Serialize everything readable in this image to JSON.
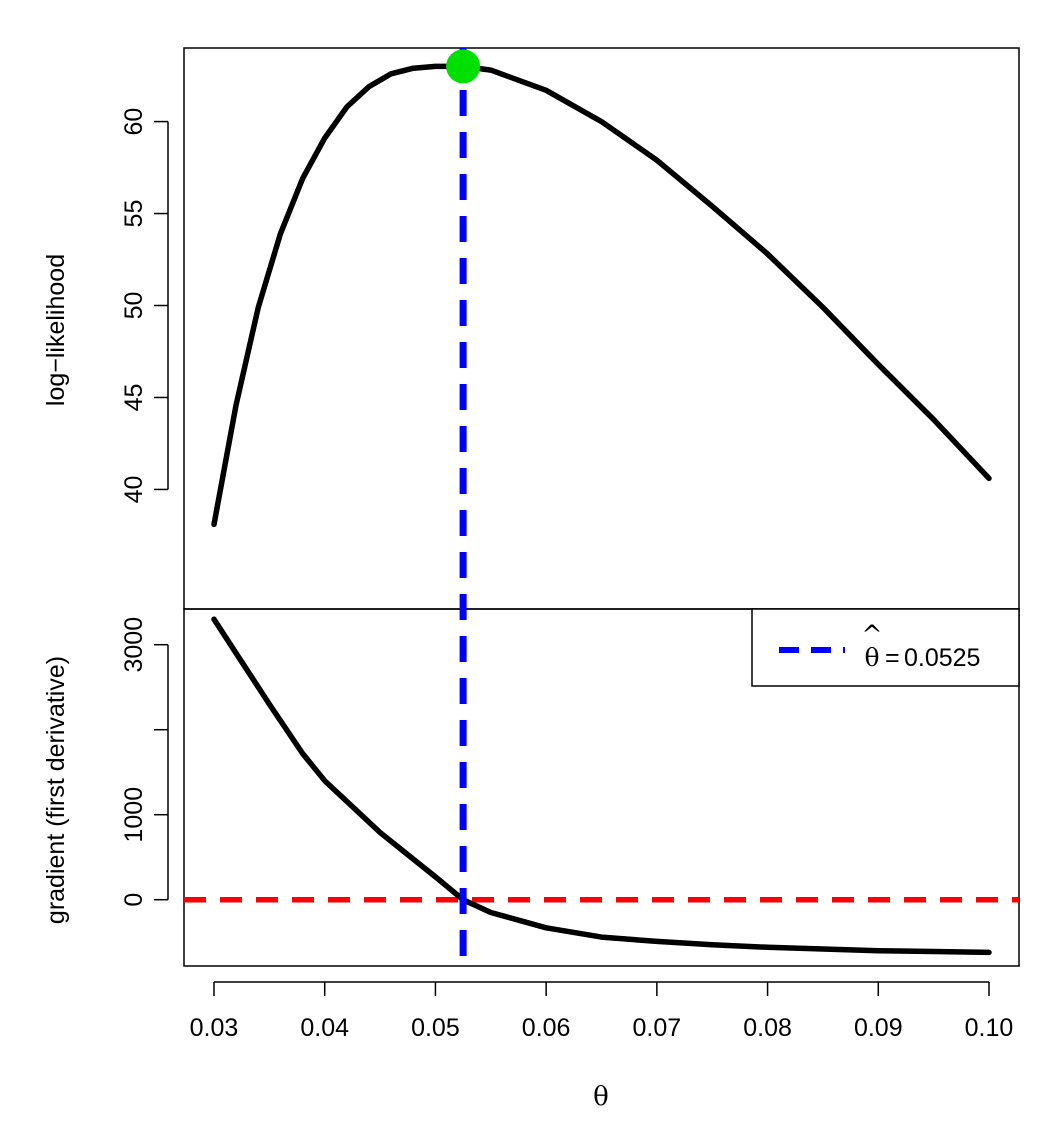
{
  "chart_data": [
    {
      "type": "line",
      "panel": "top",
      "ylabel": "log−likelihood",
      "xlim": [
        0.03,
        0.1
      ],
      "ylim": [
        33.5,
        64.0
      ],
      "yticks": [
        40,
        45,
        50,
        55,
        60
      ],
      "series": [
        {
          "name": "log-likelihood",
          "color": "#000000",
          "x": [
            0.03,
            0.032,
            0.034,
            0.036,
            0.038,
            0.04,
            0.042,
            0.044,
            0.046,
            0.048,
            0.05,
            0.0525,
            0.055,
            0.06,
            0.065,
            0.07,
            0.075,
            0.08,
            0.085,
            0.09,
            0.095,
            0.1
          ],
          "y": [
            38.1,
            44.6,
            49.9,
            53.9,
            56.9,
            59.1,
            60.8,
            61.9,
            62.6,
            62.9,
            63.0,
            63.0,
            62.8,
            61.7,
            60.0,
            57.9,
            55.4,
            52.8,
            49.9,
            46.8,
            43.8,
            40.6
          ]
        }
      ],
      "mle_point": {
        "x": 0.0525,
        "y": 63.0,
        "color": "#00e000"
      }
    },
    {
      "type": "line",
      "panel": "bottom",
      "ylabel": "gradient (first derivative)",
      "xlabel": "θ",
      "xlim": [
        0.03,
        0.1
      ],
      "ylim": [
        -780,
        3420
      ],
      "yticks": [
        0,
        1000,
        2000,
        3000
      ],
      "ytick_labels": [
        "0",
        "1000",
        "",
        "3000"
      ],
      "xticks": [
        0.03,
        0.04,
        0.05,
        0.06,
        0.07,
        0.08,
        0.09,
        0.1
      ],
      "xtick_labels": [
        "0.03",
        "0.04",
        "0.05",
        "0.06",
        "0.07",
        "0.08",
        "0.09",
        "0.10"
      ],
      "series": [
        {
          "name": "gradient",
          "color": "#000000",
          "x": [
            0.03,
            0.032,
            0.035,
            0.038,
            0.04,
            0.045,
            0.05,
            0.0525,
            0.055,
            0.06,
            0.065,
            0.07,
            0.075,
            0.08,
            0.085,
            0.09,
            0.095,
            0.1
          ],
          "y": [
            3300,
            2900,
            2300,
            1720,
            1400,
            790,
            270,
            0,
            -150,
            -330,
            -440,
            -490,
            -530,
            -560,
            -580,
            -600,
            -610,
            -620
          ]
        }
      ],
      "zero_line": {
        "y": 0,
        "color": "#ff0000"
      }
    }
  ],
  "vline": {
    "x": 0.0525,
    "color": "#0000ff"
  },
  "legend": {
    "theta_symbol": "θ",
    "hat_symbol": "^",
    "equals": "=",
    "value": "0.0525",
    "position": "top-right of lower panel"
  }
}
